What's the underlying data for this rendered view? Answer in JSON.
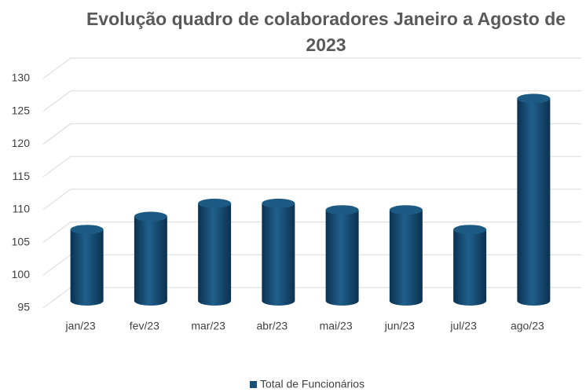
{
  "chart_data": {
    "type": "bar",
    "title": "Evolução quadro de colaboradores Janeiro a Agosto de 2023",
    "categories": [
      "jan/23",
      "fev/23",
      "mar/23",
      "abr/23",
      "mai/23",
      "jun/23",
      "jul/23",
      "ago/23"
    ],
    "series": [
      {
        "name": "Total de Funcionários",
        "color": "#1a4f75",
        "values": [
          106,
          108,
          110,
          110,
          109,
          109,
          106,
          126
        ]
      }
    ],
    "ylim": [
      95,
      130
    ],
    "yticks": [
      95,
      100,
      105,
      110,
      115,
      120,
      125,
      130
    ],
    "grid": true,
    "legend": "bottom"
  }
}
